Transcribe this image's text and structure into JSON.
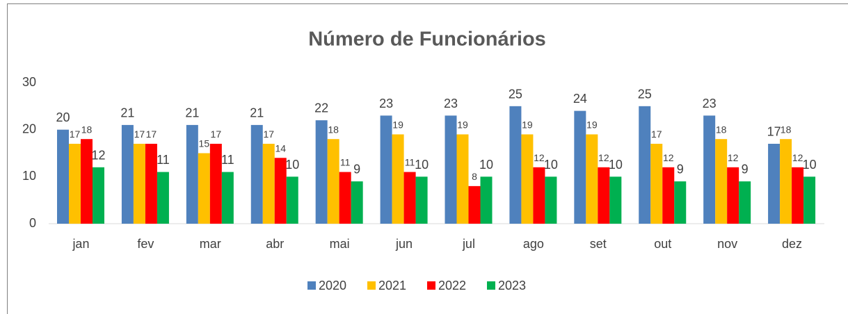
{
  "chart_data": {
    "type": "bar",
    "title": "Número de Funcionários",
    "categories": [
      "jan",
      "fev",
      "mar",
      "abr",
      "mai",
      "jun",
      "jul",
      "ago",
      "set",
      "out",
      "nov",
      "dez"
    ],
    "series": [
      {
        "name": "2020",
        "color": "#4f81bd",
        "values": [
          20,
          21,
          21,
          21,
          22,
          23,
          23,
          25,
          24,
          25,
          23,
          17
        ]
      },
      {
        "name": "2021",
        "color": "#ffc000",
        "values": [
          17,
          17,
          15,
          17,
          18,
          19,
          19,
          19,
          19,
          17,
          18,
          18
        ]
      },
      {
        "name": "2022",
        "color": "#ff0000",
        "values": [
          18,
          17,
          17,
          14,
          11,
          11,
          8,
          12,
          12,
          12,
          12,
          12
        ]
      },
      {
        "name": "2023",
        "color": "#00b050",
        "values": [
          12,
          11,
          11,
          10,
          9,
          10,
          10,
          10,
          10,
          9,
          9,
          10
        ]
      }
    ],
    "ylim": [
      0,
      30
    ],
    "yticks": [
      0,
      10,
      20,
      30
    ],
    "grid": false,
    "legend": "bottom"
  }
}
